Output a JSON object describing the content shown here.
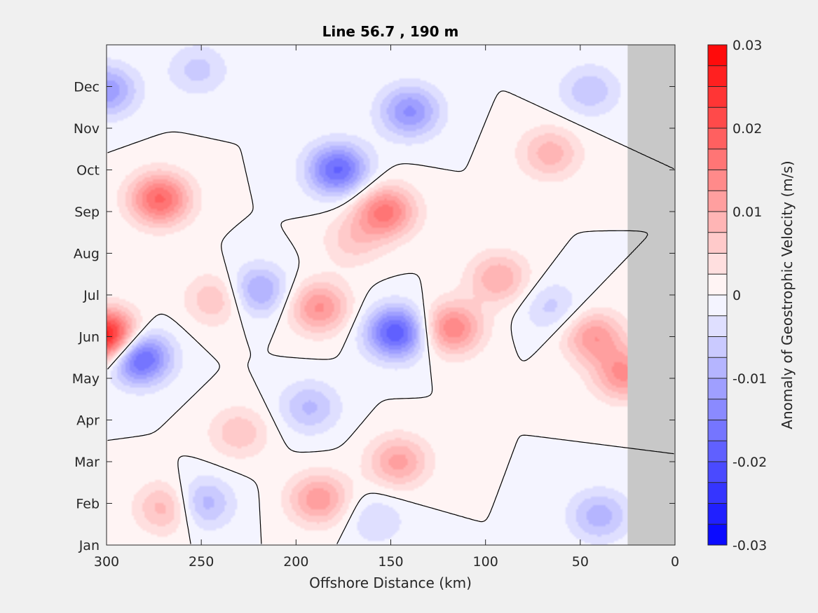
{
  "chart_data": {
    "type": "heatmap",
    "subtype": "filled-contour",
    "title": "Line 56.7 , 190 m",
    "xlabel": "Offshore Distance (km)",
    "ylabel": "",
    "xlim": [
      300,
      0
    ],
    "x_reversed": true,
    "x_ticks": [
      "300",
      "250",
      "200",
      "150",
      "100",
      "50",
      "0"
    ],
    "x_tick_values": [
      300,
      250,
      200,
      150,
      100,
      50,
      0
    ],
    "y_ticks": [
      "Jan",
      "Feb",
      "Mar",
      "Apr",
      "May",
      "Jun",
      "Jul",
      "Aug",
      "Sep",
      "Oct",
      "Nov",
      "Dec"
    ],
    "y_tick_values": [
      1,
      2,
      3,
      4,
      5,
      6,
      7,
      8,
      9,
      10,
      11,
      12
    ],
    "ylim": [
      1,
      13
    ],
    "grid": false,
    "no_data_region": {
      "x_from": 25,
      "x_to": 0,
      "color": "#c8c8c8"
    },
    "zero_contour_color": "#000000",
    "colorbar": {
      "label": "Anomaly of Geostrophic Velocity (m/s)",
      "clim": [
        -0.03,
        0.03
      ],
      "levels": 24,
      "ticks": [
        "0.03",
        "0.02",
        "0.01",
        "0",
        "-0.01",
        "-0.02",
        "-0.03"
      ],
      "tick_values": [
        0.03,
        0.02,
        0.01,
        0,
        -0.01,
        -0.02,
        -0.03
      ],
      "colormap": "blue-white-red",
      "color_min": "#0000ff",
      "color_mid": "#ffffff",
      "color_max": "#ff0000"
    },
    "features": [
      {
        "x": 300,
        "y": 6.0,
        "value": 0.029
      },
      {
        "x": 283,
        "y": 5.5,
        "value": -0.021
      },
      {
        "x": 272,
        "y": 9.3,
        "value": 0.018
      },
      {
        "x": 300,
        "y": 11.9,
        "value": -0.012
      },
      {
        "x": 268,
        "y": 1.9,
        "value": 0.01
      },
      {
        "x": 250,
        "y": 2.0,
        "value": -0.01
      },
      {
        "x": 242,
        "y": 6.9,
        "value": 0.008
      },
      {
        "x": 220,
        "y": 7.1,
        "value": -0.011
      },
      {
        "x": 178,
        "y": 10.0,
        "value": -0.018
      },
      {
        "x": 188,
        "y": 6.7,
        "value": 0.013
      },
      {
        "x": 153,
        "y": 9.0,
        "value": 0.016
      },
      {
        "x": 147,
        "y": 6.1,
        "value": -0.02
      },
      {
        "x": 118,
        "y": 6.2,
        "value": 0.015
      },
      {
        "x": 188,
        "y": 2.1,
        "value": 0.012
      },
      {
        "x": 146,
        "y": 3.0,
        "value": 0.011
      },
      {
        "x": 193,
        "y": 4.3,
        "value": -0.008
      },
      {
        "x": 230,
        "y": 3.7,
        "value": 0.007
      },
      {
        "x": 140,
        "y": 11.4,
        "value": -0.013
      },
      {
        "x": 66,
        "y": 10.4,
        "value": 0.009
      },
      {
        "x": 45,
        "y": 11.9,
        "value": -0.007
      },
      {
        "x": 43,
        "y": 6.0,
        "value": 0.012
      },
      {
        "x": 27,
        "y": 5.1,
        "value": 0.013
      },
      {
        "x": 40,
        "y": 1.7,
        "value": -0.009
      },
      {
        "x": 93,
        "y": 7.4,
        "value": 0.01
      },
      {
        "x": 65,
        "y": 6.7,
        "value": -0.006
      },
      {
        "x": 252,
        "y": 12.4,
        "value": -0.006
      },
      {
        "x": 158,
        "y": 1.6,
        "value": -0.005
      },
      {
        "x": 170,
        "y": 8.3,
        "value": 0.006
      }
    ]
  }
}
